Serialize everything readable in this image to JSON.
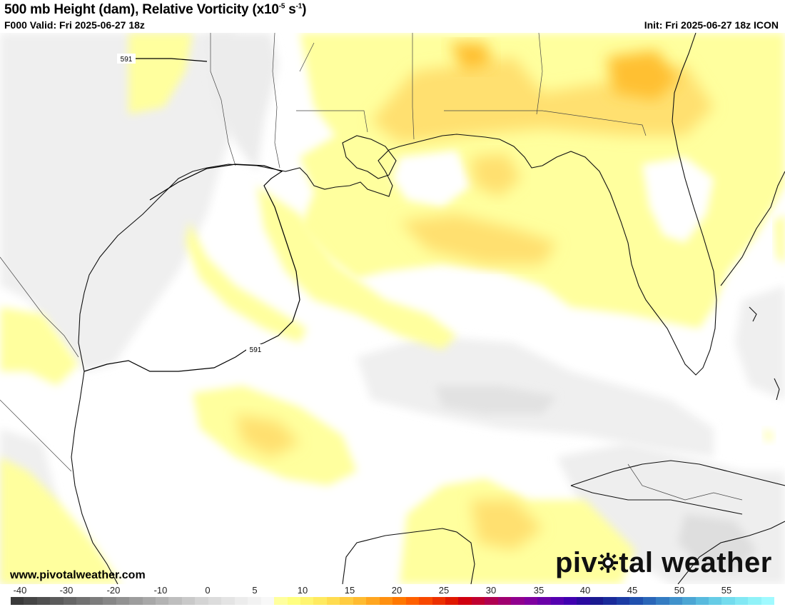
{
  "header": {
    "title_main": "500 mb Height (dam), Relative Vorticity (x10",
    "title_exp": "-5",
    "title_unit": " s",
    "title_unit_exp": "-1",
    "title_close": ")",
    "valid": "F000 Valid: Fri 2025-06-27 18z",
    "init": "Init: Fri 2025-06-27 18z ICON"
  },
  "map": {
    "contour_labels": [
      "591",
      "591"
    ],
    "colors": {
      "land_line": "#111111",
      "contour": "#000000",
      "pos_light": "#ffffa0",
      "pos_mid": "#ffe070",
      "pos_strong": "#ffc030",
      "neg_light": "#efefef",
      "neg_mid": "#e0e0e0"
    }
  },
  "footer": {
    "website": "www.pivotalweather.com",
    "logo_left": "piv",
    "logo_right": "tal weather",
    "logo_icon": "gear-icon"
  },
  "colorbar": {
    "labels": [
      "-40",
      "-30",
      "-20",
      "-10",
      "0",
      "5",
      "10",
      "15",
      "20",
      "25",
      "30",
      "35",
      "40",
      "45",
      "50",
      "55"
    ],
    "colors": [
      "#3a3a3a",
      "#454545",
      "#505050",
      "#5b5b5b",
      "#666666",
      "#717171",
      "#7c7c7c",
      "#878787",
      "#929292",
      "#9d9d9d",
      "#a8a8a8",
      "#b3b3b3",
      "#bebebe",
      "#c9c9c9",
      "#d4d4d4",
      "#dcdcdc",
      "#e4e4e4",
      "#ececec",
      "#f2f2f2",
      "#f8f8f8",
      "#ffff9e",
      "#ffff80",
      "#fff570",
      "#ffea60",
      "#ffdc50",
      "#ffcc40",
      "#ffbb30",
      "#ffa620",
      "#ff9010",
      "#ff7800",
      "#ff6000",
      "#f84800",
      "#ec3000",
      "#e01800",
      "#d00010",
      "#c00030",
      "#b00050",
      "#a00070",
      "#90008e",
      "#8000a0",
      "#6a00a8",
      "#5500b0",
      "#4000b0",
      "#2a0aa0",
      "#1a1a90",
      "#1a2a9a",
      "#1c3ca4",
      "#2050ae",
      "#2a66b8",
      "#347cc2",
      "#4092cc",
      "#4ca6d4",
      "#58bade",
      "#66cce6",
      "#74dcee",
      "#82e8f4",
      "#90f2f8",
      "#a0faff"
    ]
  }
}
